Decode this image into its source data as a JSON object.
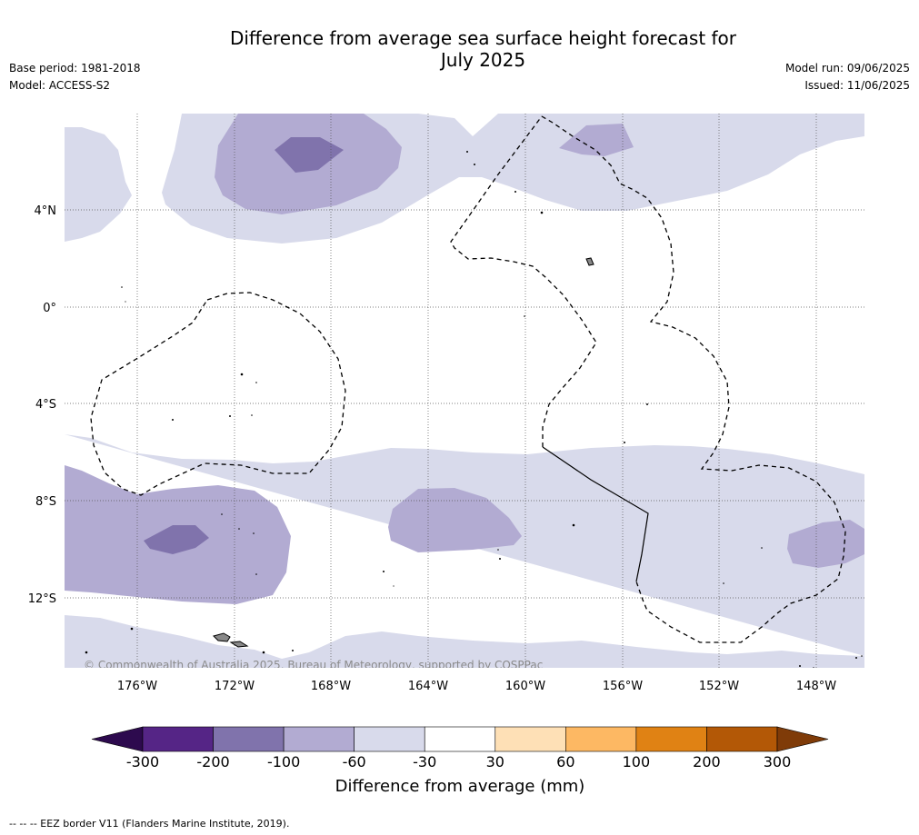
{
  "title_line1": "Difference from average sea surface height forecast for",
  "title_line2": "July 2025",
  "base_period": "Base period: 1981-2018",
  "model": "Model: ACCESS-S2",
  "model_run": "Model run: 09/06/2025",
  "issued": "Issued: 11/06/2025",
  "lat_labels": [
    "4°N",
    "0°",
    "4°S",
    "8°S",
    "12°S"
  ],
  "lon_labels": [
    "176°W",
    "172°W",
    "168°W",
    "164°W",
    "160°W",
    "156°W",
    "152°W",
    "148°W"
  ],
  "copyright": "© Commonwealth of Australia 2025, Bureau of Meteorology, supported by COSPPac",
  "colorbar": {
    "title": "Difference from average (mm)",
    "ticks": [
      "-300",
      "-200",
      "-100",
      "-60",
      "-30",
      "30",
      "60",
      "100",
      "200",
      "300"
    ],
    "colors": [
      "#2d0a4e",
      "#552586",
      "#8073ac",
      "#b2abd2",
      "#d8daeb",
      "#ffffff",
      "#fee0b6",
      "#fdb863",
      "#e08214",
      "#b35806",
      "#7f3b08"
    ]
  },
  "footer": "-- -- -- EEZ border V11 (Flanders Marine Institute, 2019)."
}
